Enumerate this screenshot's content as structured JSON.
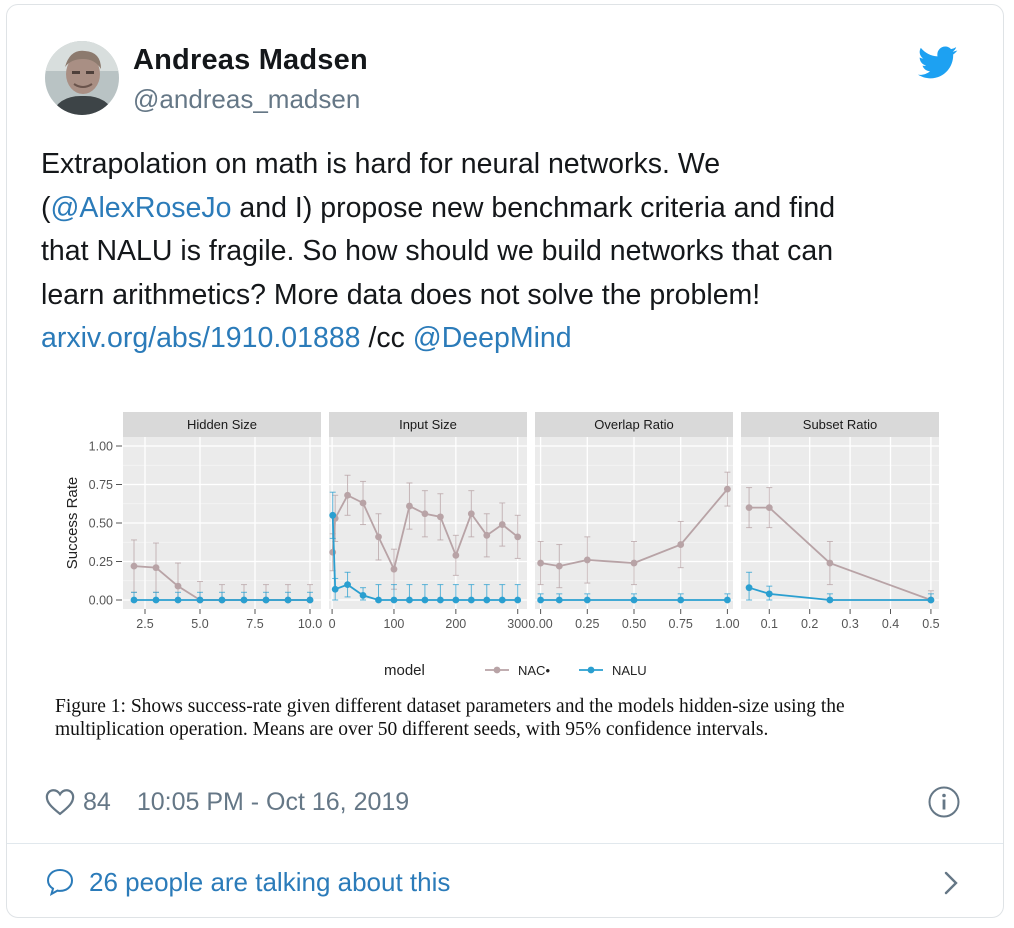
{
  "author": {
    "name": "Andreas Madsen",
    "handle": "@andreas_madsen"
  },
  "tweet": {
    "line1": "Extrapolation on math is hard for neural networks. We",
    "line2_prefix": "(",
    "mention_alex": "@AlexRoseJo",
    "line2_suffix": " and I) propose new benchmark criteria and find",
    "line3": "that NALU is fragile. So how should we build networks that can",
    "line4": "learn arithmetics? More data does not solve the problem!",
    "arxiv_link": "arxiv.org/abs/1910.01888",
    "cc_text": " /cc ",
    "mention_deepmind": "@DeepMind"
  },
  "figure_caption": {
    "line1": "Figure 1: Shows success-rate given different dataset parameters and the models hidden-size using the",
    "line2": "multiplication operation. Means are over 50 different seeds, with 95% confidence intervals."
  },
  "footer": {
    "like_count": "84",
    "timestamp": "10:05 PM - Oct 16, 2019",
    "talking": "26 people are talking about this"
  },
  "colors": {
    "nac": "#b8a3a6",
    "nalu": "#2a9fd0",
    "link": "#2b7bb9",
    "twitter_blue": "#1da1f2"
  },
  "icons": [
    "avatar",
    "twitter-bird-icon",
    "heart-icon",
    "info-icon",
    "speech-bubble-icon",
    "chevron-right-icon"
  ],
  "chart_data": {
    "type": "line",
    "ylabel": "Success Rate",
    "ylim": [
      0,
      1
    ],
    "yticks": [
      "0.00",
      "0.25",
      "0.50",
      "0.75",
      "1.00"
    ],
    "legend": {
      "title": "model",
      "entries": [
        "NAC•",
        "NALU"
      ],
      "placement": "bottom"
    },
    "grid": true,
    "panels": [
      {
        "title": "Hidden Size",
        "xlim": [
          1.5,
          10.5
        ],
        "xticks": [
          2.5,
          5.0,
          7.5,
          10.0
        ],
        "xtick_labels": [
          "2.5",
          "5.0",
          "7.5",
          "10.0"
        ],
        "series": [
          {
            "x": [
              2,
              3,
              4,
              5,
              6,
              7,
              8,
              9,
              10
            ],
            "y": [
              0.22,
              0.21,
              0.09,
              0,
              0,
              0,
              0,
              0,
              0
            ],
            "err": [
              0.17,
              0.16,
              0.15,
              0.12,
              0.1,
              0.1,
              0.1,
              0.1,
              0.1
            ]
          },
          {
            "x": [
              2,
              3,
              4,
              5,
              6,
              7,
              8,
              9,
              10
            ],
            "y": [
              0,
              0,
              0,
              0,
              0,
              0,
              0,
              0,
              0
            ],
            "err": [
              0.05,
              0.05,
              0.05,
              0.05,
              0.05,
              0.05,
              0.05,
              0.05,
              0.05
            ]
          }
        ]
      },
      {
        "title": "Input Size",
        "xlim": [
          -5,
          315
        ],
        "xticks": [
          0,
          100,
          200,
          300
        ],
        "xtick_labels": [
          "0",
          "100",
          "200",
          "300"
        ],
        "series": [
          {
            "x": [
              1,
              5,
              25,
              50,
              75,
              100,
              125,
              150,
              175,
              200,
              225,
              250,
              275,
              300
            ],
            "y": [
              0.31,
              0.53,
              0.68,
              0.63,
              0.41,
              0.2,
              0.61,
              0.56,
              0.54,
              0.29,
              0.56,
              0.42,
              0.49,
              0.41
            ],
            "err": [
              0.12,
              0.15,
              0.13,
              0.14,
              0.15,
              0.13,
              0.15,
              0.15,
              0.15,
              0.13,
              0.15,
              0.14,
              0.14,
              0.14
            ]
          },
          {
            "x": [
              1,
              5,
              25,
              50,
              75,
              100,
              125,
              150,
              175,
              200,
              225,
              250,
              275,
              300
            ],
            "y": [
              0.55,
              0.07,
              0.1,
              0.03,
              0,
              0,
              0,
              0,
              0,
              0,
              0,
              0,
              0,
              0
            ],
            "err": [
              0.15,
              0.07,
              0.08,
              0.05,
              0.1,
              0.1,
              0.1,
              0.1,
              0.1,
              0.1,
              0.1,
              0.1,
              0.1,
              0.1
            ]
          }
        ]
      },
      {
        "title": "Overlap Ratio",
        "xlim": [
          -0.03,
          1.03
        ],
        "xticks": [
          0,
          0.25,
          0.5,
          0.75,
          1.0
        ],
        "xtick_labels": [
          "0.00",
          "0.25",
          "0.50",
          "0.75",
          "1.00"
        ],
        "series": [
          {
            "x": [
              0,
              0.1,
              0.25,
              0.5,
              0.75,
              1.0
            ],
            "y": [
              0.24,
              0.22,
              0.26,
              0.24,
              0.36,
              0.72
            ],
            "err": [
              0.14,
              0.14,
              0.15,
              0.14,
              0.15,
              0.11
            ]
          },
          {
            "x": [
              0,
              0.1,
              0.25,
              0.5,
              0.75,
              1.0
            ],
            "y": [
              0,
              0,
              0,
              0,
              0,
              0
            ],
            "err": [
              0.04,
              0.04,
              0.04,
              0.04,
              0.04,
              0.04
            ]
          }
        ]
      },
      {
        "title": "Subset Ratio",
        "xlim": [
          0.03,
          0.52
        ],
        "xticks": [
          0.1,
          0.2,
          0.3,
          0.4,
          0.5
        ],
        "xtick_labels": [
          "0.1",
          "0.2",
          "0.3",
          "0.4",
          "0.5"
        ],
        "series": [
          {
            "x": [
              0.05,
              0.1,
              0.25,
              0.5
            ],
            "y": [
              0.6,
              0.6,
              0.24,
              0
            ],
            "err": [
              0.13,
              0.13,
              0.14,
              0.06
            ]
          },
          {
            "x": [
              0.05,
              0.1,
              0.25,
              0.5
            ],
            "y": [
              0.08,
              0.04,
              0,
              0
            ],
            "err": [
              0.1,
              0.05,
              0.04,
              0.04
            ]
          }
        ]
      }
    ]
  }
}
